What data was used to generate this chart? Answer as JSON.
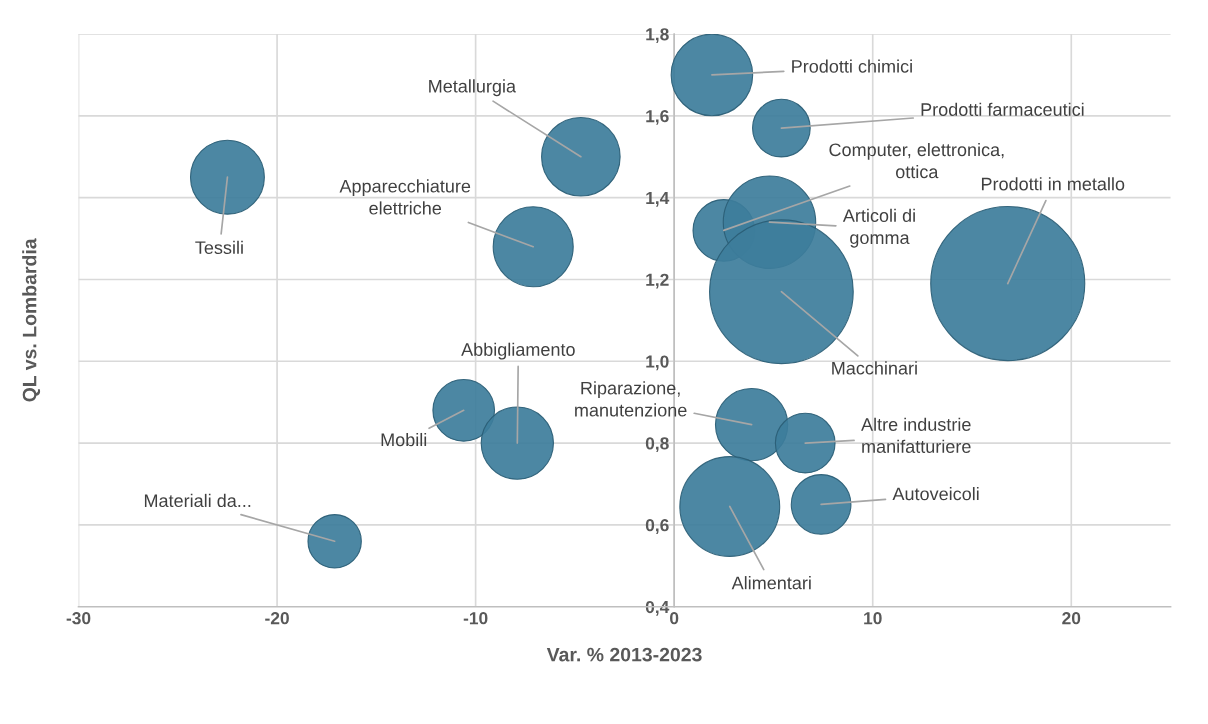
{
  "chart_data": {
    "type": "bubble",
    "xlabel": "Var. % 2013-2023",
    "ylabel": "QL vs. Lombardia",
    "x": [
      1.9,
      5.4,
      -4.7,
      -22.5,
      2.5,
      4.8,
      -7.1,
      5.4,
      16.8,
      -10.6,
      -7.9,
      3.9,
      6.6,
      7.4,
      2.8,
      -17.1
    ],
    "values": [
      1.7,
      1.57,
      1.5,
      1.45,
      1.32,
      1.34,
      1.28,
      1.17,
      1.19,
      0.88,
      0.8,
      0.845,
      0.8,
      0.65,
      0.645,
      0.56
    ],
    "sizes": [
      0.28,
      0.14,
      0.26,
      0.23,
      0.16,
      0.36,
      0.27,
      0.87,
      1,
      0.16,
      0.22,
      0.22,
      0.15,
      0.15,
      0.42,
      0.12
    ],
    "color": "#3d7d9b",
    "xlim": [
      -30,
      25
    ],
    "xticks": [
      -30,
      -20,
      -10,
      0,
      10,
      20
    ],
    "ylim": [
      0.4,
      1.8
    ],
    "yticks": [
      {
        "value": 0.4,
        "label": "0,4"
      },
      {
        "value": 0.6,
        "label": "0,6"
      },
      {
        "value": 0.8,
        "label": "0,8"
      },
      {
        "value": 1.0,
        "label": "1,0"
      },
      {
        "value": 1.2,
        "label": "1,2"
      },
      {
        "value": 1.4,
        "label": "1,4"
      },
      {
        "value": 1.6,
        "label": "1,6"
      },
      {
        "value": 1.8,
        "label": "1,8"
      }
    ],
    "grid": true,
    "annotations": [
      {
        "text": "Prodotti chimici",
        "x": 1.9,
        "y": 1.7
      },
      {
        "text": "Prodotti farmaceutici",
        "x": 5.4,
        "y": 1.57
      },
      {
        "text": "Metallurgia",
        "x": -4.7,
        "y": 1.5
      },
      {
        "text": "Tessili",
        "x": -22.5,
        "y": 1.45
      },
      {
        "text": "Computer, elettronica,\nottica",
        "x": 2.5,
        "y": 1.32
      },
      {
        "text": "Articoli di\ngomma",
        "x": 4.8,
        "y": 1.34
      },
      {
        "text": "Apparecchiature\nelettriche",
        "x": -7.1,
        "y": 1.28
      },
      {
        "text": "Macchinari",
        "x": 5.4,
        "y": 1.17
      },
      {
        "text": "Prodotti in metallo",
        "x": 16.8,
        "y": 1.19
      },
      {
        "text": "Mobili",
        "x": -10.6,
        "y": 0.88
      },
      {
        "text": "Abbigliamento",
        "x": -7.9,
        "y": 0.8
      },
      {
        "text": "Riparazione,\nmanutenzione",
        "x": 3.9,
        "y": 0.845
      },
      {
        "text": "Altre industrie\nmanifatturiere",
        "x": 6.6,
        "y": 0.8
      },
      {
        "text": "Autoveicoli",
        "x": 7.4,
        "y": 0.65
      },
      {
        "text": "Alimentari",
        "x": 2.8,
        "y": 0.645
      },
      {
        "text": "Materiali da...",
        "x": -17.1,
        "y": 0.56
      }
    ]
  }
}
